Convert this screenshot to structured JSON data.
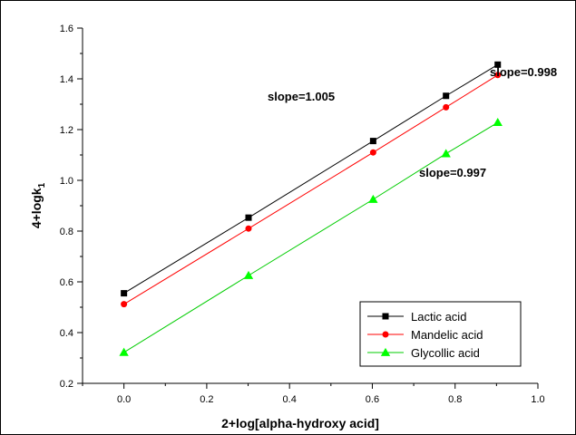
{
  "chart_data": {
    "type": "line",
    "title": "",
    "xlabel": "2+log[alpha-hydroxy acid]",
    "ylabel_main": "4+logk",
    "ylabel_sub": "1",
    "xlim": [
      -0.1,
      1.0
    ],
    "ylim": [
      0.2,
      1.6
    ],
    "x_ticks": [
      "0.0",
      "0.2",
      "0.4",
      "0.6",
      "0.8",
      "1.0"
    ],
    "y_ticks": [
      "0.2",
      "0.4",
      "0.6",
      "0.8",
      "1.0",
      "1.2",
      "1.4",
      "1.6"
    ],
    "x": [
      0.0,
      0.301,
      0.602,
      0.778,
      0.903
    ],
    "series": [
      {
        "name": "Lactic acid",
        "marker": "square",
        "line_color": "#000000",
        "marker_color": "#000000",
        "values": [
          0.555,
          0.853,
          1.155,
          1.333,
          1.456
        ]
      },
      {
        "name": "Mandelic acid",
        "marker": "circle",
        "line_color": "#ff0000",
        "marker_color": "#ff0000",
        "values": [
          0.512,
          0.81,
          1.11,
          1.288,
          1.415
        ]
      },
      {
        "name": "Glycollic acid",
        "marker": "triangle",
        "line_color": "#00cc00",
        "marker_color": "#00ff00",
        "values": [
          0.322,
          0.625,
          0.925,
          1.105,
          1.228
        ]
      }
    ],
    "annotations": [
      "slope=1.005",
      "slope=0.998",
      "slope=0.997"
    ],
    "legend_position": "bottom-right",
    "grid": false
  }
}
